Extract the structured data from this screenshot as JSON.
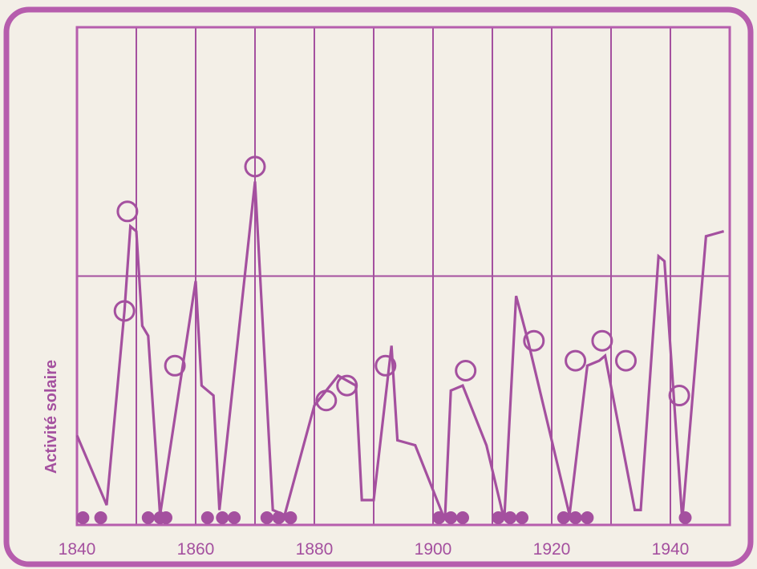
{
  "chart_data": {
    "type": "line",
    "title": "",
    "xlabel": "",
    "ylabel": "Activité solaire",
    "xlim": [
      1840,
      1950
    ],
    "ylim": [
      0,
      10
    ],
    "x_ticks": [
      1840,
      1860,
      1880,
      1900,
      1920,
      1940
    ],
    "x_tick_labels": [
      "1840",
      "1860",
      "1880",
      "1900",
      "1920",
      "1940"
    ],
    "vertical_grid_years": [
      1850,
      1860,
      1870,
      1880,
      1890,
      1900,
      1910,
      1920,
      1930,
      1940
    ],
    "horizontal_line_value": 5,
    "grid": true,
    "colors": {
      "line": "#a4509f",
      "frame": "#b65dad",
      "background": "#f3efe7"
    },
    "series": [
      {
        "marker": "none",
        "points": [
          [
            1840,
            1.8
          ],
          [
            1845,
            0.4
          ],
          [
            1848,
            4.3
          ],
          [
            1849,
            6.0
          ],
          [
            1850,
            5.9
          ],
          [
            1851,
            4.0
          ],
          [
            1852,
            3.8
          ],
          [
            1854,
            0.2
          ],
          [
            1860,
            4.9
          ],
          [
            1861,
            2.8
          ],
          [
            1863,
            2.6
          ],
          [
            1864,
            0.3
          ],
          [
            1870,
            6.9
          ],
          [
            1873,
            0.3
          ],
          [
            1875,
            0.2
          ],
          [
            1880,
            2.4
          ],
          [
            1884,
            3.0
          ],
          [
            1887,
            2.8
          ],
          [
            1888,
            0.5
          ],
          [
            1890,
            0.5
          ],
          [
            1893,
            3.6
          ],
          [
            1894,
            1.7
          ],
          [
            1897,
            1.6
          ],
          [
            1902,
            0.1
          ],
          [
            1903,
            2.7
          ],
          [
            1905,
            2.8
          ],
          [
            1909,
            1.6
          ],
          [
            1912,
            0.1
          ],
          [
            1914,
            4.6
          ],
          [
            1916,
            3.7
          ],
          [
            1923,
            0.2
          ],
          [
            1926,
            3.2
          ],
          [
            1928,
            3.3
          ],
          [
            1929,
            3.4
          ],
          [
            1934,
            0.3
          ],
          [
            1935,
            0.3
          ],
          [
            1938,
            5.4
          ],
          [
            1939,
            5.3
          ],
          [
            1942,
            0.1
          ],
          [
            1946,
            5.8
          ],
          [
            1949,
            5.9
          ]
        ]
      }
    ],
    "open_circles": [
      [
        1848,
        4.3
      ],
      [
        1848.5,
        6.3
      ],
      [
        1856.5,
        3.2
      ],
      [
        1870,
        7.2
      ],
      [
        1882,
        2.5
      ],
      [
        1885.5,
        2.8
      ],
      [
        1892,
        3.2
      ],
      [
        1905.5,
        3.1
      ],
      [
        1917,
        3.7
      ],
      [
        1924,
        3.3
      ],
      [
        1928.5,
        3.7
      ],
      [
        1932.5,
        3.3
      ],
      [
        1941.5,
        2.6
      ]
    ],
    "filled_dots_years": [
      1841,
      1844,
      1852,
      1854,
      1855,
      1862,
      1864.5,
      1866.5,
      1872,
      1874,
      1876,
      1901,
      1903,
      1905,
      1911,
      1913,
      1915,
      1922,
      1924,
      1926,
      1942.5
    ]
  }
}
